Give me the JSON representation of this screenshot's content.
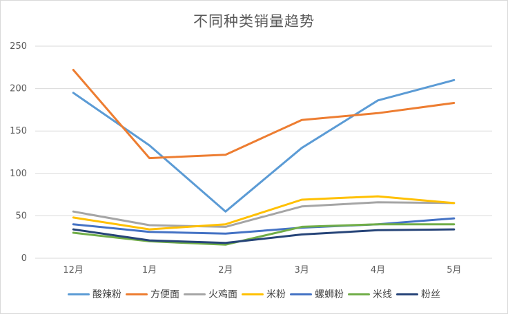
{
  "chart_data": {
    "type": "line",
    "title": "不同种类销量趋势",
    "xlabel": "",
    "ylabel": "",
    "categories": [
      "12月",
      "1月",
      "2月",
      "3月",
      "4月",
      "5月"
    ],
    "ylim": [
      0,
      250
    ],
    "yticks": [
      0,
      50,
      100,
      150,
      200,
      250
    ],
    "grid": true,
    "legend_position": "bottom",
    "series": [
      {
        "name": "酸辣粉",
        "color": "#5B9BD5",
        "values": [
          195,
          133,
          55,
          130,
          186,
          210
        ]
      },
      {
        "name": "方便面",
        "color": "#ED7D31",
        "values": [
          222,
          118,
          122,
          163,
          171,
          183
        ]
      },
      {
        "name": "火鸡面",
        "color": "#A5A5A5",
        "values": [
          55,
          39,
          37,
          61,
          66,
          65
        ]
      },
      {
        "name": "米粉",
        "color": "#FFC000",
        "values": [
          48,
          34,
          40,
          69,
          73,
          65
        ]
      },
      {
        "name": "螺蛳粉",
        "color": "#4472C4",
        "values": [
          40,
          31,
          29,
          36,
          40,
          47
        ]
      },
      {
        "name": "米线",
        "color": "#70AD47",
        "values": [
          30,
          20,
          16,
          37,
          40,
          40
        ]
      },
      {
        "name": "粉丝",
        "color": "#264478",
        "values": [
          34,
          21,
          18,
          28,
          33,
          34
        ]
      }
    ]
  }
}
